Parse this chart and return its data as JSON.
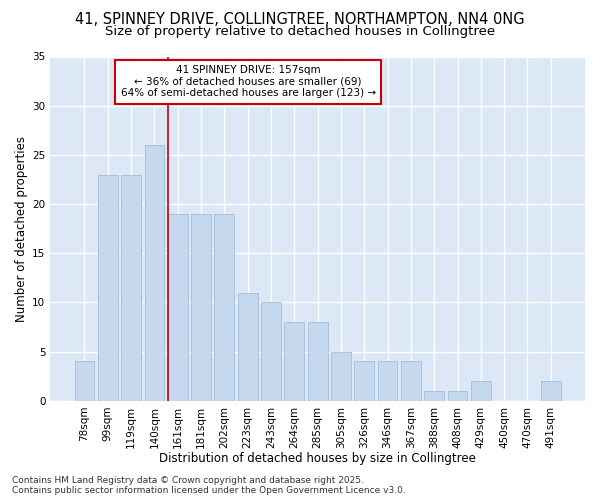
{
  "title_line1": "41, SPINNEY DRIVE, COLLINGTREE, NORTHAMPTON, NN4 0NG",
  "title_line2": "Size of property relative to detached houses in Collingtree",
  "xlabel": "Distribution of detached houses by size in Collingtree",
  "ylabel": "Number of detached properties",
  "categories": [
    "78sqm",
    "99sqm",
    "119sqm",
    "140sqm",
    "161sqm",
    "181sqm",
    "202sqm",
    "223sqm",
    "243sqm",
    "264sqm",
    "285sqm",
    "305sqm",
    "326sqm",
    "346sqm",
    "367sqm",
    "388sqm",
    "408sqm",
    "429sqm",
    "450sqm",
    "470sqm",
    "491sqm"
  ],
  "values": [
    4,
    23,
    23,
    26,
    19,
    19,
    19,
    11,
    10,
    8,
    8,
    5,
    4,
    4,
    4,
    1,
    1,
    2,
    0,
    0,
    2
  ],
  "bar_color": "#c5d8ed",
  "bar_edge_color": "#a0bedd",
  "background_color": "#dce8f5",
  "grid_color": "#ffffff",
  "annotation_text": "41 SPINNEY DRIVE: 157sqm\n← 36% of detached houses are smaller (69)\n64% of semi-detached houses are larger (123) →",
  "vline_x_index": 4,
  "vline_color": "#cc0000",
  "ylim": [
    0,
    35
  ],
  "yticks": [
    0,
    5,
    10,
    15,
    20,
    25,
    30,
    35
  ],
  "footer": "Contains HM Land Registry data © Crown copyright and database right 2025.\nContains public sector information licensed under the Open Government Licence v3.0.",
  "fig_bg_color": "#ffffff",
  "title_fontsize": 10.5,
  "subtitle_fontsize": 9.5,
  "axis_label_fontsize": 8.5,
  "tick_fontsize": 7.5,
  "annotation_fontsize": 7.5,
  "footer_fontsize": 6.5
}
